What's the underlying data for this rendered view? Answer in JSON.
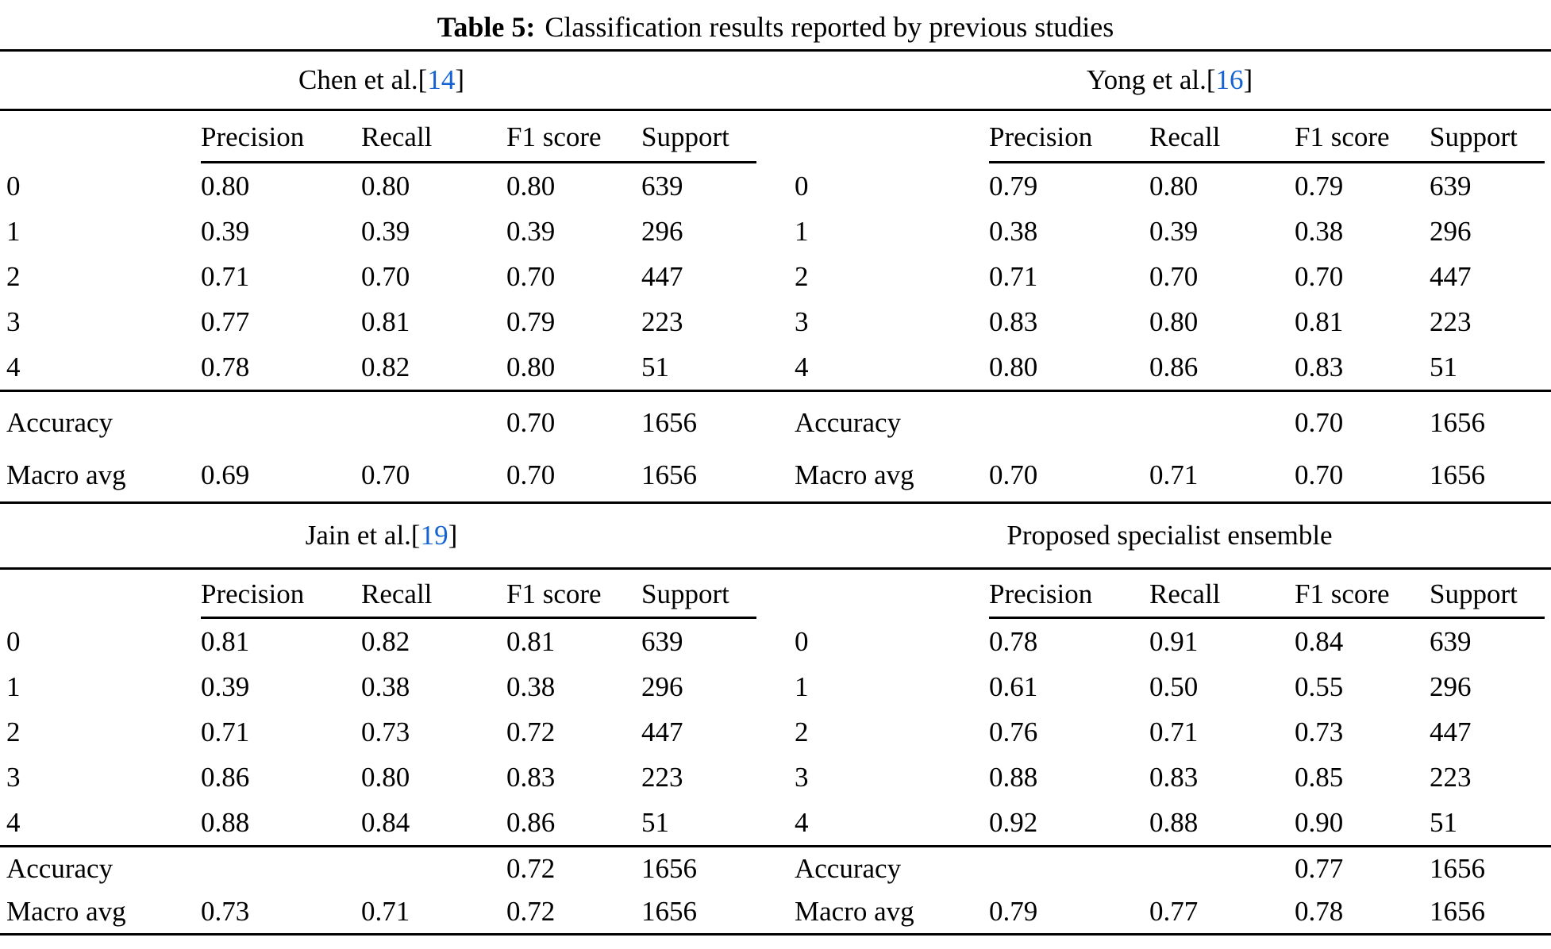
{
  "title": {
    "label": "Table 5:",
    "text": "Classification results reported by previous studies"
  },
  "columns": [
    "Precision",
    "Recall",
    "F1 score",
    "Support"
  ],
  "colors": {
    "citation_blue": "#1563d2",
    "text": "#000000",
    "background": "#ffffff",
    "rule": "#000000"
  },
  "panels": [
    {
      "title": "Chen et al. ",
      "cite_open": "[",
      "cite_num": "14",
      "cite_close": "]",
      "rows": [
        {
          "label": "0",
          "precision": "0.80",
          "recall": "0.80",
          "f1": "0.80",
          "support": "639"
        },
        {
          "label": "1",
          "precision": "0.39",
          "recall": "0.39",
          "f1": "0.39",
          "support": "296"
        },
        {
          "label": "2",
          "precision": "0.71",
          "recall": "0.70",
          "f1": "0.70",
          "support": "447"
        },
        {
          "label": "3",
          "precision": "0.77",
          "recall": "0.81",
          "f1": "0.79",
          "support": "223"
        },
        {
          "label": "4",
          "precision": "0.78",
          "recall": "0.82",
          "f1": "0.80",
          "support": "51"
        }
      ],
      "accuracy": {
        "label": "Accuracy",
        "f1": "0.70",
        "support": "1656"
      },
      "macro_avg": {
        "label": "Macro avg",
        "precision": "0.69",
        "recall": "0.70",
        "f1": "0.70",
        "support": "1656"
      }
    },
    {
      "title": "Yong et al. ",
      "cite_open": "[",
      "cite_num": "16",
      "cite_close": "]",
      "rows": [
        {
          "label": "0",
          "precision": "0.79",
          "recall": "0.80",
          "f1": "0.79",
          "support": "639"
        },
        {
          "label": "1",
          "precision": "0.38",
          "recall": "0.39",
          "f1": "0.38",
          "support": "296"
        },
        {
          "label": "2",
          "precision": "0.71",
          "recall": "0.70",
          "f1": "0.70",
          "support": "447"
        },
        {
          "label": "3",
          "precision": "0.83",
          "recall": "0.80",
          "f1": "0.81",
          "support": "223"
        },
        {
          "label": "4",
          "precision": "0.80",
          "recall": "0.86",
          "f1": "0.83",
          "support": "51"
        }
      ],
      "accuracy": {
        "label": "Accuracy",
        "f1": "0.70",
        "support": "1656"
      },
      "macro_avg": {
        "label": "Macro avg",
        "precision": "0.70",
        "recall": "0.71",
        "f1": "0.70",
        "support": "1656"
      }
    },
    {
      "title": "Jain et al. ",
      "cite_open": "[",
      "cite_num": "19",
      "cite_close": "]",
      "rows": [
        {
          "label": "0",
          "precision": "0.81",
          "recall": "0.82",
          "f1": "0.81",
          "support": "639"
        },
        {
          "label": "1",
          "precision": "0.39",
          "recall": "0.38",
          "f1": "0.38",
          "support": "296"
        },
        {
          "label": "2",
          "precision": "0.71",
          "recall": "0.73",
          "f1": "0.72",
          "support": "447"
        },
        {
          "label": "3",
          "precision": "0.86",
          "recall": "0.80",
          "f1": "0.83",
          "support": "223"
        },
        {
          "label": "4",
          "precision": "0.88",
          "recall": "0.84",
          "f1": "0.86",
          "support": "51"
        }
      ],
      "accuracy": {
        "label": "Accuracy",
        "f1": "0.72",
        "support": "1656"
      },
      "macro_avg": {
        "label": "Macro avg",
        "precision": "0.73",
        "recall": "0.71",
        "f1": "0.72",
        "support": "1656"
      }
    },
    {
      "title": "Proposed specialist ensemble",
      "rows": [
        {
          "label": "0",
          "precision": "0.78",
          "recall": "0.91",
          "f1": "0.84",
          "support": "639"
        },
        {
          "label": "1",
          "precision": "0.61",
          "recall": "0.50",
          "f1": "0.55",
          "support": "296"
        },
        {
          "label": "2",
          "precision": "0.76",
          "recall": "0.71",
          "f1": "0.73",
          "support": "447"
        },
        {
          "label": "3",
          "precision": "0.88",
          "recall": "0.83",
          "f1": "0.85",
          "support": "223"
        },
        {
          "label": "4",
          "precision": "0.92",
          "recall": "0.88",
          "f1": "0.90",
          "support": "51"
        }
      ],
      "accuracy": {
        "label": "Accuracy",
        "f1": "0.77",
        "support": "1656"
      },
      "macro_avg": {
        "label": "Macro avg",
        "precision": "0.79",
        "recall": "0.77",
        "f1": "0.78",
        "support": "1656"
      }
    }
  ]
}
